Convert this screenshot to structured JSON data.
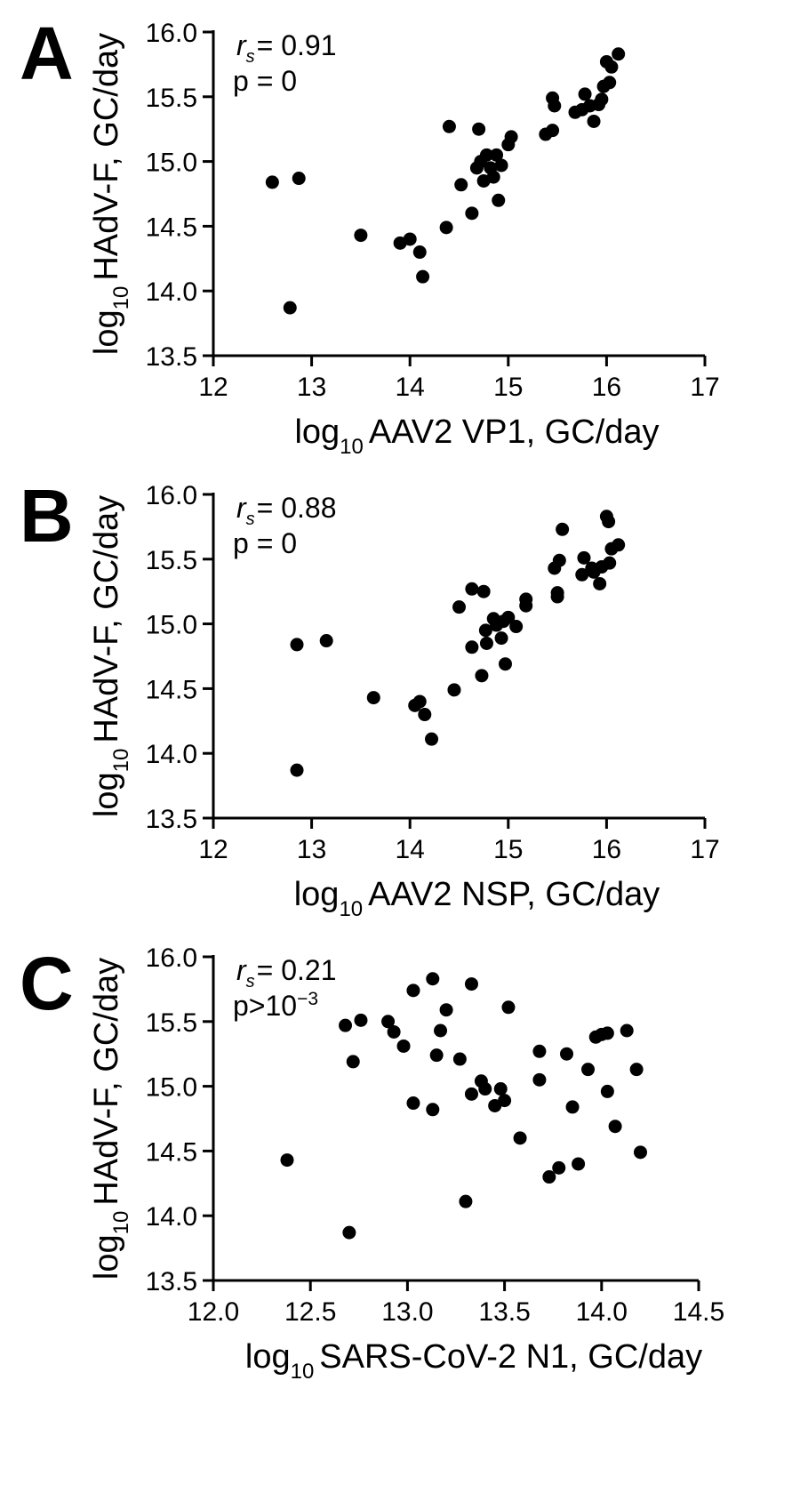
{
  "panels": [
    {
      "letter": "A",
      "stat_label": "= 0.91",
      "p_label": "p = 0"
    },
    {
      "letter": "B",
      "stat_label": "= 0.88",
      "p_label": "p = 0"
    },
    {
      "letter": "C",
      "stat_label": "= 0.21",
      "p_label": "p>10"
    }
  ],
  "chart_data": [
    {
      "type": "scatter",
      "xlabel": "AAV2 VP1, GC/day",
      "ylabel": "HAdV-F, GC/day",
      "log_prefix": "log",
      "log_sub": "10",
      "xlim": [
        12,
        17
      ],
      "ylim": [
        13.5,
        16.0
      ],
      "xticks": [
        "12",
        "13",
        "14",
        "15",
        "16",
        "17"
      ],
      "yticks": [
        "13.5",
        "14.0",
        "14.5",
        "15.0",
        "15.5",
        "16.0"
      ],
      "annotations": {
        "rs_symbol": "r",
        "rs_sub": "s",
        "rs_value": "= 0.91",
        "p": "p = 0"
      },
      "points": [
        [
          12.6,
          14.84
        ],
        [
          12.87,
          14.87
        ],
        [
          12.78,
          13.87
        ],
        [
          13.5,
          14.43
        ],
        [
          13.9,
          14.37
        ],
        [
          14.0,
          14.4
        ],
        [
          14.1,
          14.3
        ],
        [
          14.13,
          14.11
        ],
        [
          14.37,
          14.49
        ],
        [
          14.4,
          15.27
        ],
        [
          14.52,
          14.82
        ],
        [
          14.63,
          14.6
        ],
        [
          14.68,
          14.95
        ],
        [
          14.7,
          15.25
        ],
        [
          14.72,
          15.0
        ],
        [
          14.75,
          14.85
        ],
        [
          14.78,
          15.05
        ],
        [
          14.82,
          14.95
        ],
        [
          14.85,
          14.88
        ],
        [
          14.88,
          15.05
        ],
        [
          14.9,
          14.7
        ],
        [
          14.93,
          14.97
        ],
        [
          15.0,
          15.13
        ],
        [
          15.03,
          15.19
        ],
        [
          15.38,
          15.21
        ],
        [
          15.45,
          15.24
        ],
        [
          15.45,
          15.49
        ],
        [
          15.47,
          15.43
        ],
        [
          15.68,
          15.38
        ],
        [
          15.75,
          15.4
        ],
        [
          15.78,
          15.52
        ],
        [
          15.83,
          15.43
        ],
        [
          15.87,
          15.31
        ],
        [
          15.92,
          15.44
        ],
        [
          15.95,
          15.48
        ],
        [
          15.97,
          15.58
        ],
        [
          16.0,
          15.77
        ],
        [
          16.03,
          15.61
        ],
        [
          16.05,
          15.73
        ],
        [
          16.12,
          15.83
        ]
      ]
    },
    {
      "type": "scatter",
      "xlabel": "AAV2 NSP,  GC/day",
      "ylabel": "HAdV-F, GC/day",
      "log_prefix": "log",
      "log_sub": "10",
      "xlim": [
        12,
        17
      ],
      "ylim": [
        13.5,
        16.0
      ],
      "xticks": [
        "12",
        "13",
        "14",
        "15",
        "16",
        "17"
      ],
      "yticks": [
        "13.5",
        "14.0",
        "14.5",
        "15.0",
        "15.5",
        "16.0"
      ],
      "annotations": {
        "rs_symbol": "r",
        "rs_sub": "s",
        "rs_value": "= 0.88",
        "p": "p = 0"
      },
      "points": [
        [
          12.85,
          14.84
        ],
        [
          13.15,
          14.87
        ],
        [
          12.85,
          13.87
        ],
        [
          13.63,
          14.43
        ],
        [
          14.05,
          14.37
        ],
        [
          14.1,
          14.4
        ],
        [
          14.15,
          14.3
        ],
        [
          14.22,
          14.11
        ],
        [
          14.45,
          14.49
        ],
        [
          14.5,
          15.13
        ],
        [
          14.63,
          15.27
        ],
        [
          14.63,
          14.82
        ],
        [
          14.73,
          14.6
        ],
        [
          14.75,
          15.25
        ],
        [
          14.77,
          14.95
        ],
        [
          14.78,
          14.85
        ],
        [
          14.85,
          15.04
        ],
        [
          14.88,
          14.99
        ],
        [
          14.93,
          14.89
        ],
        [
          14.95,
          15.02
        ],
        [
          14.97,
          14.69
        ],
        [
          15.0,
          15.05
        ],
        [
          15.08,
          14.98
        ],
        [
          15.18,
          15.14
        ],
        [
          15.18,
          15.19
        ],
        [
          15.47,
          15.43
        ],
        [
          15.5,
          15.21
        ],
        [
          15.5,
          15.24
        ],
        [
          15.52,
          15.49
        ],
        [
          15.55,
          15.73
        ],
        [
          15.75,
          15.38
        ],
        [
          15.77,
          15.51
        ],
        [
          15.85,
          15.43
        ],
        [
          15.87,
          15.4
        ],
        [
          15.93,
          15.31
        ],
        [
          15.95,
          15.44
        ],
        [
          16.0,
          15.83
        ],
        [
          16.02,
          15.79
        ],
        [
          16.03,
          15.47
        ],
        [
          16.05,
          15.58
        ],
        [
          16.12,
          15.61
        ]
      ]
    },
    {
      "type": "scatter",
      "xlabel": "SARS-CoV-2 N1,  GC/day",
      "ylabel": "HAdV-F, GC/day",
      "log_prefix": "log",
      "log_sub": "10",
      "xlim": [
        12.0,
        14.5
      ],
      "ylim": [
        13.5,
        16.0
      ],
      "xticks": [
        "12.0",
        "12.5",
        "13.0",
        "13.5",
        "14.0",
        "14.5"
      ],
      "yticks": [
        "13.5",
        "14.0",
        "14.5",
        "15.0",
        "15.5",
        "16.0"
      ],
      "annotations": {
        "rs_symbol": "r",
        "rs_sub": "s",
        "rs_value": "= 0.21",
        "p": "p>10",
        "p_sup": "−3"
      },
      "points": [
        [
          12.38,
          14.43
        ],
        [
          12.68,
          15.47
        ],
        [
          12.7,
          13.87
        ],
        [
          12.72,
          15.19
        ],
        [
          12.76,
          15.51
        ],
        [
          12.9,
          15.5
        ],
        [
          12.93,
          15.42
        ],
        [
          12.98,
          15.31
        ],
        [
          13.03,
          15.74
        ],
        [
          13.03,
          14.87
        ],
        [
          13.13,
          15.83
        ],
        [
          13.13,
          14.82
        ],
        [
          13.15,
          15.24
        ],
        [
          13.17,
          15.43
        ],
        [
          13.2,
          15.59
        ],
        [
          13.27,
          15.21
        ],
        [
          13.3,
          14.11
        ],
        [
          13.33,
          15.79
        ],
        [
          13.33,
          14.94
        ],
        [
          13.38,
          15.04
        ],
        [
          13.4,
          14.98
        ],
        [
          13.45,
          14.85
        ],
        [
          13.48,
          14.98
        ],
        [
          13.5,
          14.89
        ],
        [
          13.52,
          15.61
        ],
        [
          13.58,
          14.6
        ],
        [
          13.68,
          15.27
        ],
        [
          13.68,
          15.05
        ],
        [
          13.73,
          14.3
        ],
        [
          13.78,
          14.37
        ],
        [
          13.82,
          15.25
        ],
        [
          13.85,
          14.84
        ],
        [
          13.88,
          14.4
        ],
        [
          13.93,
          15.13
        ],
        [
          13.97,
          15.38
        ],
        [
          14.0,
          15.4
        ],
        [
          14.03,
          15.41
        ],
        [
          14.03,
          14.96
        ],
        [
          14.07,
          14.69
        ],
        [
          14.13,
          15.43
        ],
        [
          14.18,
          15.13
        ],
        [
          14.2,
          14.49
        ]
      ]
    }
  ]
}
